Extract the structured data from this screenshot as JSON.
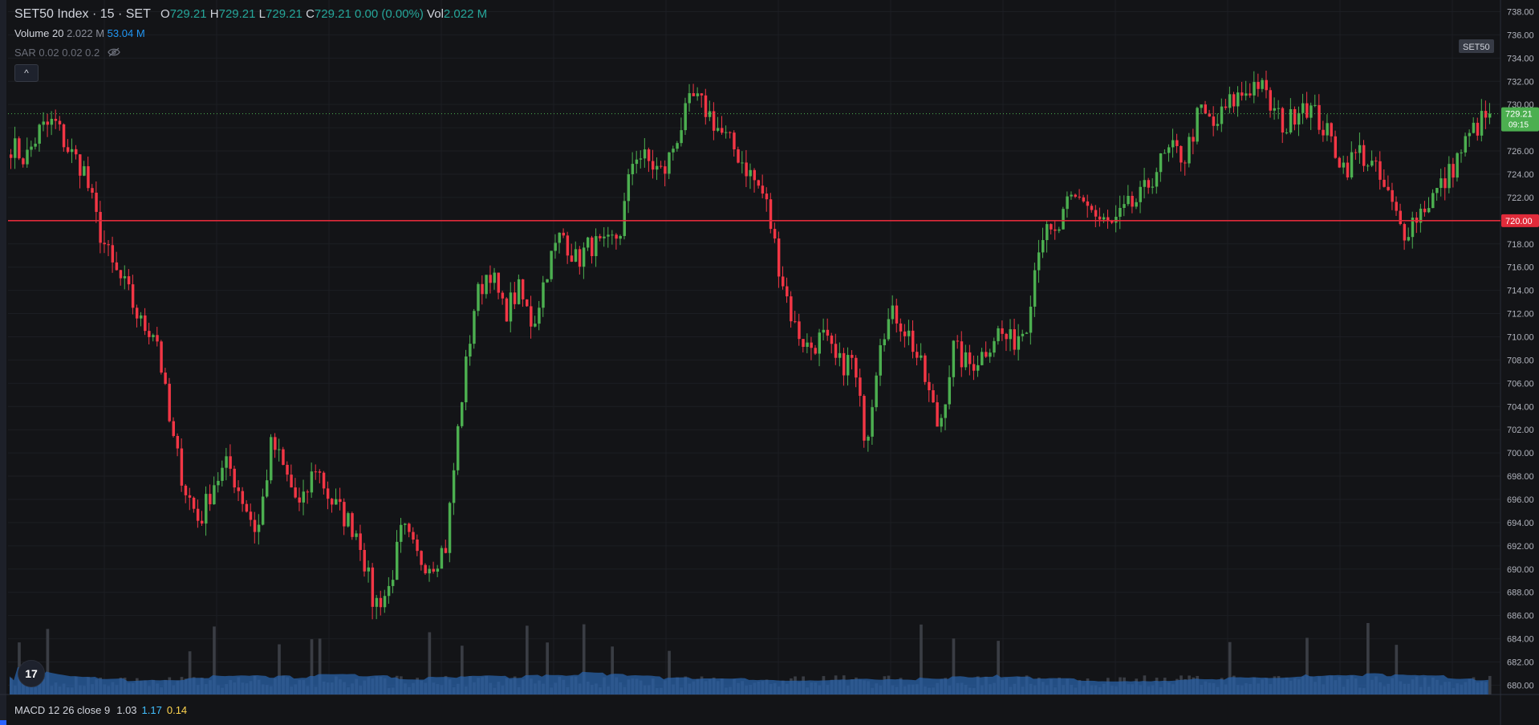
{
  "header": {
    "symbol_title": "SET50 Index · 15 · SET",
    "open_label": "O",
    "open": "729.21",
    "high_label": "H",
    "high": "729.21",
    "low_label": "L",
    "low": "729.21",
    "close_label": "C",
    "close": "729.21",
    "change": "0.00 (0.00%)",
    "vol_label": "Vol",
    "vol": "2.022 M"
  },
  "volume_indicator": {
    "label": "Volume 20",
    "value1": "2.022 M",
    "value2": "53.04 M"
  },
  "sar_indicator": {
    "label": "SAR 0.02 0.02 0.2"
  },
  "macd_indicator": {
    "label": "MACD 12 26 close 9",
    "v1": "1.03",
    "v2": "1.17",
    "v3": "0.14"
  },
  "collapse_button": "^",
  "logo_text": "17",
  "symbol_tag": "SET50",
  "price_tag": {
    "price": "729.21",
    "countdown": "09:15"
  },
  "horizontal_line_tag": "720.00",
  "colors": {
    "up": "#4caf50",
    "down": "#f23645",
    "hline": "#e02b3a",
    "volume": "#2962a8",
    "grid": "#1c1e23"
  },
  "chart_data": {
    "type": "candlestick",
    "y_ticks": [
      "738.00",
      "736.00",
      "734.00",
      "732.00",
      "730.00",
      "728.00",
      "726.00",
      "724.00",
      "722.00",
      "720.00",
      "718.00",
      "716.00",
      "714.00",
      "712.00",
      "710.00",
      "708.00",
      "706.00",
      "704.00",
      "702.00",
      "700.00",
      "698.00",
      "696.00",
      "694.00",
      "692.00",
      "690.00",
      "688.00",
      "686.00",
      "684.00",
      "682.00",
      "680.00"
    ],
    "ylim": [
      679.2,
      739.0
    ],
    "horizontal_line": 720.0,
    "last_price": 729.21,
    "close_path": [
      726.5,
      725.3,
      727.8,
      728.5,
      726.0,
      724.5,
      719.5,
      716.0,
      714.0,
      711.0,
      710.5,
      702.0,
      697.0,
      694.0,
      697.5,
      699.0,
      696.0,
      693.0,
      701.0,
      698.0,
      695.0,
      699.0,
      696.0,
      694.5,
      693.0,
      687.0,
      688.0,
      693.5,
      691.0,
      690.5,
      692.0,
      704.0,
      713.0,
      716.0,
      712.0,
      714.0,
      711.0,
      716.0,
      719.0,
      716.5,
      718.0,
      717.5,
      719.0,
      726.0,
      725.0,
      724.0,
      727.5,
      730.5,
      729.5,
      727.5,
      726.0,
      724.0,
      722.0,
      716.0,
      711.0,
      709.0,
      710.0,
      707.5,
      708.0,
      701.0,
      710.5,
      712.0,
      710.0,
      706.5,
      702.0,
      709.0,
      707.5,
      708.5,
      710.5,
      709.5,
      711.0,
      719.0,
      718.5,
      721.5,
      722.0,
      720.0,
      719.5,
      721.0,
      722.0,
      724.5,
      726.0,
      725.5,
      729.5,
      728.0,
      730.0,
      731.0,
      732.0,
      729.5,
      728.0,
      730.5,
      729.0,
      727.0,
      724.5,
      726.0,
      724.5,
      722.0,
      719.0,
      720.5,
      722.0,
      723.5,
      726.0,
      728.0,
      729.21
    ],
    "volume_avg_text": "53.04 M"
  }
}
